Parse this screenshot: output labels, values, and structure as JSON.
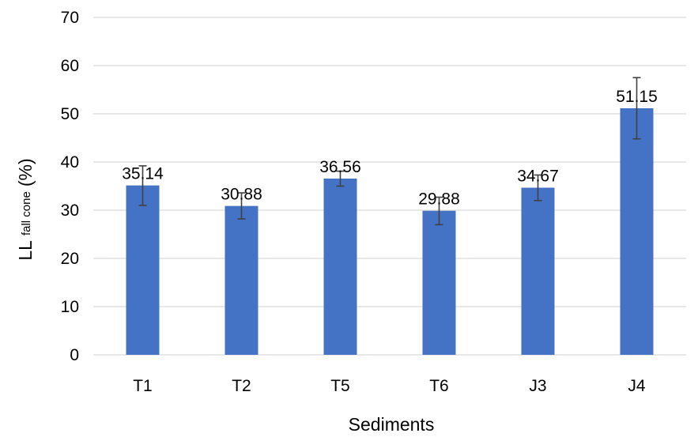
{
  "chart_data": {
    "type": "bar",
    "categories": [
      "T1",
      "T2",
      "T5",
      "T6",
      "J3",
      "J4"
    ],
    "values": [
      35.14,
      30.88,
      36.56,
      29.88,
      34.67,
      51.15
    ],
    "error_low": [
      31.0,
      28.2,
      35.0,
      27.0,
      32.0,
      44.8
    ],
    "error_high": [
      39.2,
      33.6,
      38.1,
      32.7,
      37.3,
      57.5
    ],
    "data_labels": [
      "35.14",
      "30.88",
      "36.56",
      "29.88",
      "34.67",
      "51.15"
    ],
    "xlabel": "Sediments",
    "ylabel": {
      "main": "LL",
      "subscript": "fall cone",
      "suffix": "(%)"
    },
    "ylim": [
      0,
      70
    ],
    "yticks": [
      0,
      10,
      20,
      30,
      40,
      50,
      60,
      70
    ],
    "grid": true,
    "legend": "none",
    "colors": {
      "bar": "#4472C4",
      "grid": "#D9D9D9",
      "error_bar": "#404040",
      "text": "#000000"
    }
  }
}
